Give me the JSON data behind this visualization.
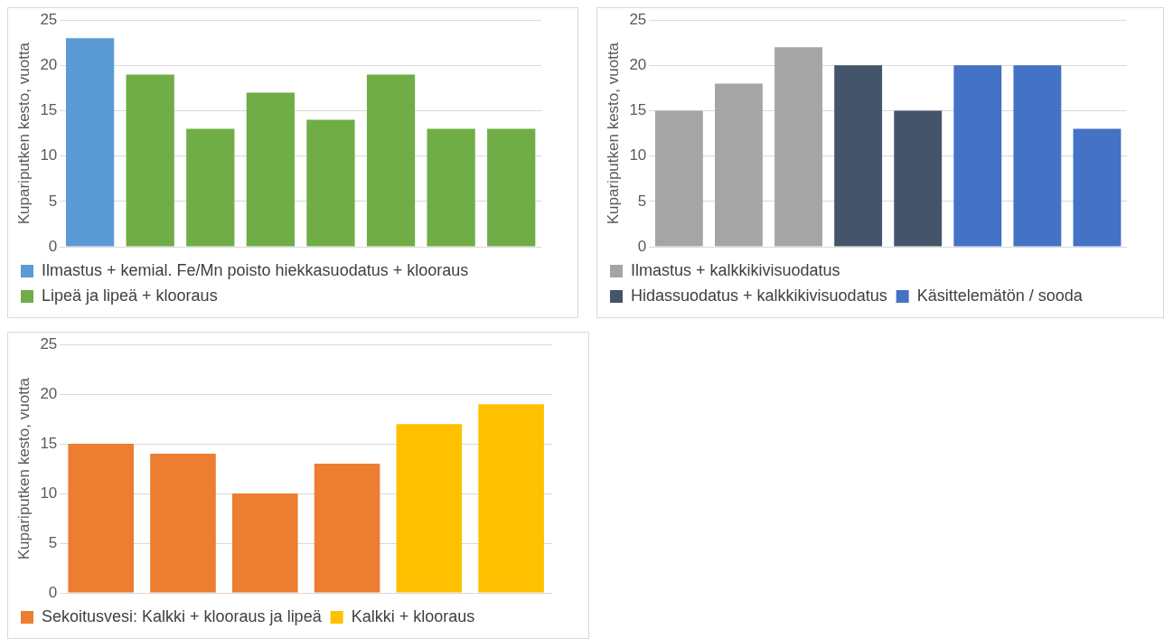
{
  "chart_data": [
    {
      "type": "bar",
      "ylabel": "Kupariputken kesto, vuotta",
      "categories": [
        null,
        null,
        null,
        null,
        null,
        null,
        null,
        null
      ],
      "ylim": [
        0,
        25
      ],
      "yticks": [
        0,
        5,
        10,
        15,
        20,
        25
      ],
      "grid": "y",
      "tick_labels": "y",
      "legend": "bottom",
      "series": [
        {
          "name": "Ilmastus + kemial. Fe/Mn poisto hiekkasuodatus + klooraus",
          "color": "#5b9bd5",
          "values": [
            23,
            null,
            null,
            null,
            null,
            null,
            null,
            null
          ]
        },
        {
          "name": "Lipeä ja lipeä + klooraus",
          "color": "#70ad47",
          "values": [
            null,
            19,
            13,
            17,
            14,
            19,
            13,
            13
          ]
        }
      ]
    },
    {
      "type": "bar",
      "ylabel": "Kupariputken kesto, vuotta",
      "categories": [
        null,
        null,
        null,
        null,
        null,
        null,
        null,
        null
      ],
      "ylim": [
        0,
        25
      ],
      "yticks": [
        0,
        5,
        10,
        15,
        20,
        25
      ],
      "grid": "y",
      "tick_labels": "y",
      "legend": "bottom",
      "series": [
        {
          "name": "Ilmastus + kalkkikivisuodatus",
          "color": "#a5a5a5",
          "values": [
            15,
            18,
            22,
            null,
            null,
            null,
            null,
            null
          ]
        },
        {
          "name": "Hidassuodatus + kalkkikivisuodatus",
          "color": "#44546a",
          "values": [
            null,
            null,
            null,
            20,
            15,
            null,
            null,
            null
          ]
        },
        {
          "name": "Käsittelemätön / sooda",
          "color": "#4472c4",
          "values": [
            null,
            null,
            null,
            null,
            null,
            20,
            20,
            13
          ]
        }
      ]
    },
    {
      "type": "bar",
      "ylabel": "Kupariputken kesto, vuotta",
      "categories": [
        null,
        null,
        null,
        null,
        null,
        null
      ],
      "ylim": [
        0,
        25
      ],
      "yticks": [
        0,
        5,
        10,
        15,
        20,
        25
      ],
      "grid": "y",
      "tick_labels": "y",
      "legend": "bottom",
      "series": [
        {
          "name": "Sekoitusvesi: Kalkki + klooraus ja lipeä",
          "color": "#ed7d31",
          "values": [
            15,
            14,
            10,
            13,
            null,
            null
          ]
        },
        {
          "name": "Kalkki + klooraus",
          "color": "#ffc000",
          "values": [
            null,
            null,
            null,
            null,
            17,
            19
          ]
        }
      ]
    }
  ]
}
